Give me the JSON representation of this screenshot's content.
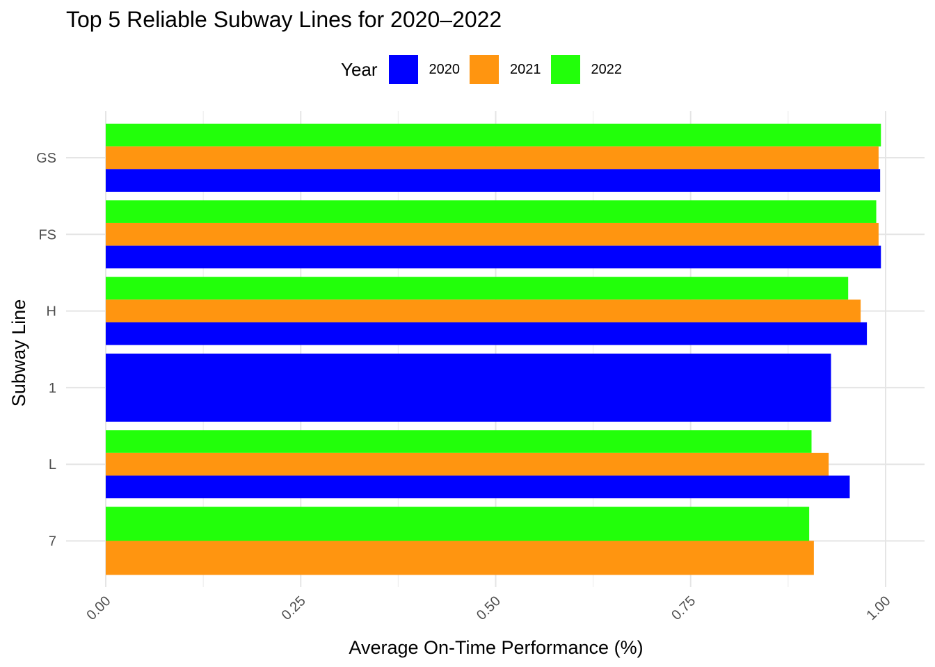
{
  "chart_data": {
    "type": "bar",
    "orientation": "horizontal",
    "title": "Top 5 Reliable Subway Lines for 2020–2022",
    "xlabel": "Average On-Time Performance (%)",
    "ylabel": "Subway Line",
    "legend_title": "Year",
    "legend_position": "top",
    "grid": true,
    "xlim": [
      0,
      1
    ],
    "x_ticks": [
      "0.00",
      "0.25",
      "0.50",
      "0.75",
      "1.00"
    ],
    "categories": [
      "GS",
      "FS",
      "H",
      "1",
      "L",
      "7"
    ],
    "series": [
      {
        "name": "2020",
        "color": "#0000FF",
        "values": [
          0.993,
          0.994,
          0.976,
          0.93,
          0.954,
          null
        ]
      },
      {
        "name": "2021",
        "color": "#FF9510",
        "values": [
          0.991,
          0.991,
          0.968,
          null,
          0.927,
          0.908
        ]
      },
      {
        "name": "2022",
        "color": "#22FF0A",
        "values": [
          0.994,
          0.988,
          0.952,
          null,
          0.905,
          0.902
        ]
      }
    ]
  }
}
